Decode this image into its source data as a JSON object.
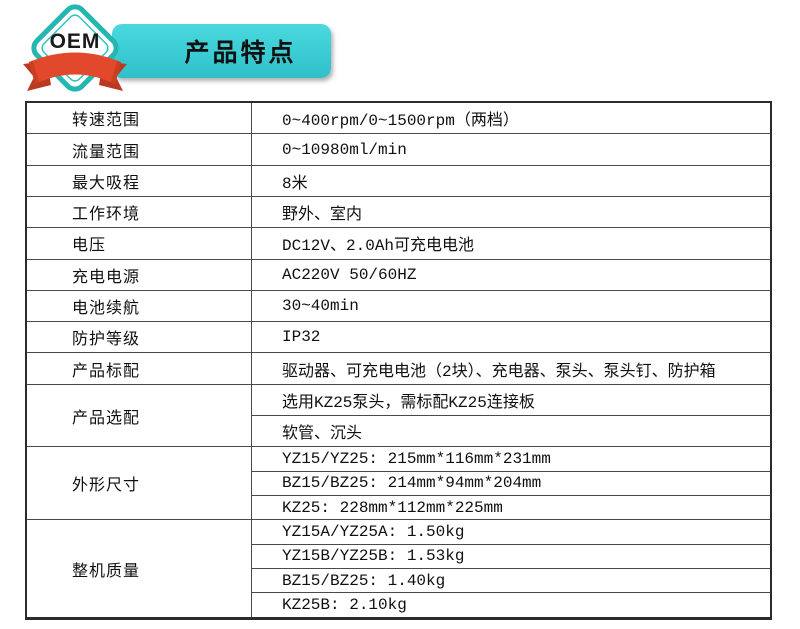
{
  "header": {
    "badge_label": "OEM",
    "banner_title": "产品特点"
  },
  "colors": {
    "banner_teal": "#3accd4",
    "diamond_border": "#24b7b2",
    "diamond_fill": "#ffffff",
    "ribbon_red": "#e2492c",
    "ribbon_dark_red": "#b93a20",
    "table_border": "#4a4a4a",
    "text": "#101010"
  },
  "table": {
    "groups": [
      {
        "label": "转速范围",
        "values": [
          "0~400rpm/0~1500rpm（两档）"
        ]
      },
      {
        "label": "流量范围",
        "values": [
          "0~10980ml/min"
        ]
      },
      {
        "label": "最大吸程",
        "values": [
          "8米"
        ]
      },
      {
        "label": "工作环境",
        "values": [
          "野外、室内"
        ]
      },
      {
        "label": "电压",
        "values": [
          "DC12V、2.0Ah可充电电池"
        ]
      },
      {
        "label": "充电电源",
        "values": [
          "AC220V 50/60HZ"
        ]
      },
      {
        "label": "电池续航",
        "values": [
          "30~40min"
        ]
      },
      {
        "label": "防护等级",
        "values": [
          "IP32"
        ]
      },
      {
        "label": "产品标配",
        "values": [
          "驱动器、可充电电池（2块）、充电器、泵头、泵头钉、防护箱"
        ]
      },
      {
        "label": "产品选配",
        "values": [
          "选用KZ25泵头，需标配KZ25连接板",
          "软管、沉头"
        ]
      },
      {
        "label": "外形尺寸",
        "values": [
          "YZ15/YZ25: 215mm*116mm*231mm",
          "BZ15/BZ25: 214mm*94mm*204mm",
          "KZ25: 228mm*112mm*225mm"
        ]
      },
      {
        "label": "整机质量",
        "values": [
          "YZ15A/YZ25A: 1.50kg",
          "YZ15B/YZ25B: 1.53kg",
          "BZ15/BZ25: 1.40kg",
          "KZ25B: 2.10kg"
        ]
      }
    ]
  }
}
